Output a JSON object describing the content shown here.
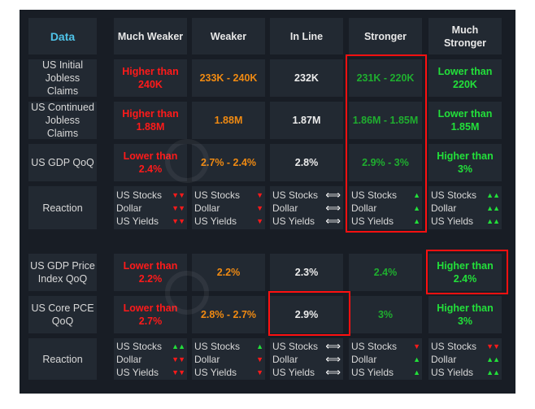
{
  "colors": {
    "red": "#ff1a1a",
    "orange": "#f08a12",
    "white": "#ececec",
    "green": "#1fae2f",
    "bright_green": "#22e03a",
    "header_accent": "#4fc3e8",
    "highlight": "#ff1010"
  },
  "watermark": "financialjuice",
  "headers": [
    "Data",
    "Much Weaker",
    "Weaker",
    "In Line",
    "Stronger",
    "Much Stronger"
  ],
  "sections": [
    {
      "rows": [
        {
          "label": "US Initial Jobless Claims",
          "values": [
            "Higher than 240K",
            "233K - 240K",
            "232K",
            "231K - 220K",
            "Lower than 220K"
          ]
        },
        {
          "label": "US Continued Jobless Claims",
          "values": [
            "Higher than 1.88M",
            "1.88M",
            "1.87M",
            "1.86M - 1.85M",
            "Lower than 1.85M"
          ]
        },
        {
          "label": "US GDP QoQ",
          "values": [
            "Lower than 2.4%",
            "2.7% - 2.4%",
            "2.8%",
            "2.9% - 3%",
            "Higher than 3%"
          ]
        }
      ],
      "reaction": {
        "label": "Reaction",
        "columns": [
          [
            {
              "asset": "US Stocks",
              "signal": "▼▼"
            },
            {
              "asset": "Dollar",
              "signal": "▼▼"
            },
            {
              "asset": "US Yields",
              "signal": "▼▼"
            }
          ],
          [
            {
              "asset": "US Stocks",
              "signal": "▼"
            },
            {
              "asset": "Dollar",
              "signal": "▼"
            },
            {
              "asset": "US Yields",
              "signal": "▼"
            }
          ],
          [
            {
              "asset": "US Stocks",
              "signal": "⟺"
            },
            {
              "asset": "Dollar",
              "signal": "⟺"
            },
            {
              "asset": "US Yields",
              "signal": "⟺"
            }
          ],
          [
            {
              "asset": "US Stocks",
              "signal": "▲"
            },
            {
              "asset": "Dollar",
              "signal": "▲"
            },
            {
              "asset": "US Yields",
              "signal": "▲"
            }
          ],
          [
            {
              "asset": "US Stocks",
              "signal": "▲▲"
            },
            {
              "asset": "Dollar",
              "signal": "▲▲"
            },
            {
              "asset": "US Yields",
              "signal": "▲▲"
            }
          ]
        ]
      }
    },
    {
      "rows": [
        {
          "label": "US GDP Price Index QoQ",
          "values": [
            "Lower than 2.2%",
            "2.2%",
            "2.3%",
            "2.4%",
            "Higher than 2.4%"
          ]
        },
        {
          "label": "US Core PCE QoQ",
          "values": [
            "Lower than 2.7%",
            "2.8% - 2.7%",
            "2.9%",
            "3%",
            "Higher than 3%"
          ]
        }
      ],
      "reaction": {
        "label": "Reaction",
        "columns": [
          [
            {
              "asset": "US Stocks",
              "signal": "▲▲"
            },
            {
              "asset": "Dollar",
              "signal": "▼▼"
            },
            {
              "asset": "US Yields",
              "signal": "▼▼"
            }
          ],
          [
            {
              "asset": "US Stocks",
              "signal": "▲"
            },
            {
              "asset": "Dollar",
              "signal": "▼"
            },
            {
              "asset": "US Yields",
              "signal": "▼"
            }
          ],
          [
            {
              "asset": "US Stocks",
              "signal": "⟺"
            },
            {
              "asset": "Dollar",
              "signal": "⟺"
            },
            {
              "asset": "US Yields",
              "signal": "⟺"
            }
          ],
          [
            {
              "asset": "US Stocks",
              "signal": "▼"
            },
            {
              "asset": "Dollar",
              "signal": "▲"
            },
            {
              "asset": "US Yields",
              "signal": "▲"
            }
          ],
          [
            {
              "asset": "US Stocks",
              "signal": "▼▼"
            },
            {
              "asset": "Dollar",
              "signal": "▲▲"
            },
            {
              "asset": "US Yields",
              "signal": "▲▲"
            }
          ]
        ]
      }
    }
  ]
}
